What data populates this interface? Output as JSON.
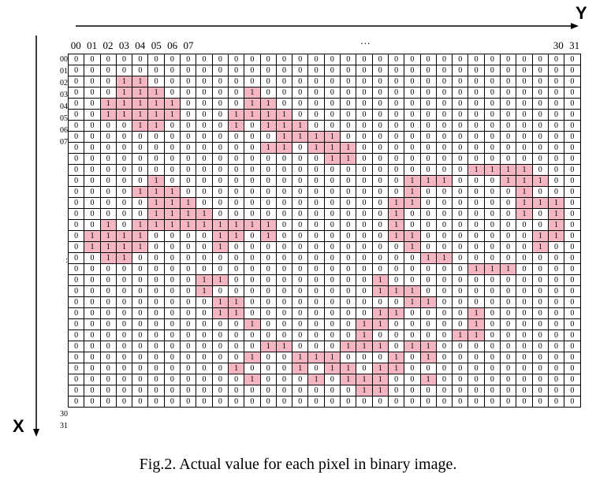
{
  "axes": {
    "y_label": "Y",
    "x_label": "X"
  },
  "column_headers": [
    "00",
    "01",
    "02",
    "03",
    "04",
    "05",
    "06",
    "07",
    "…",
    "30",
    "31"
  ],
  "row_headers": [
    "00",
    "01",
    "02",
    "03",
    "04",
    "05",
    "06",
    "07",
    ":",
    "30",
    "31"
  ],
  "grid_values": [
    "00000000000000000000000000000000",
    "00000000000000000000000000000000",
    "00011000000000000000000000000000",
    "00011100000100000000000000000000",
    "00111110000110000000000000000000",
    "00111110001111000000000000000000",
    "00001100001011100000000000000000",
    "00000000000001111000000000000000",
    "00000000000011011100000000000000",
    "00000000000000001100000000000000",
    "00000000000000000000000001111000",
    "00000100000000000000011100011100",
    "00001110000000000000010000001000",
    "00000111000000000000110000001110",
    "00000111100000000000100000001010",
    "00101111111110000000100000000010",
    "01111000011010000000110000000110",
    "01111000010000000000010000000100",
    "00110000000000000000001100000000",
    "00000000000000000000000001110000",
    "00000000110000000001000000000000",
    "00000000100000000001110000000000",
    "00000000011000000000011000000000",
    "00000000011000000001100001000000",
    "00000000000100000011000001000000",
    "00000000000000000010000011000000",
    "00000000000011000111011000000000",
    "00000000000100111000101000000000",
    "00000000001000101101100000000000",
    "00000000000100010111001000000000",
    "00000000000000000011000000000000",
    "00000000000000000000000000000000"
  ],
  "caption": "Fig.2. Actual value for each pixel in binary image.",
  "colors": {
    "on_cell": "#f4b6c2",
    "grid_line": "#000000"
  }
}
